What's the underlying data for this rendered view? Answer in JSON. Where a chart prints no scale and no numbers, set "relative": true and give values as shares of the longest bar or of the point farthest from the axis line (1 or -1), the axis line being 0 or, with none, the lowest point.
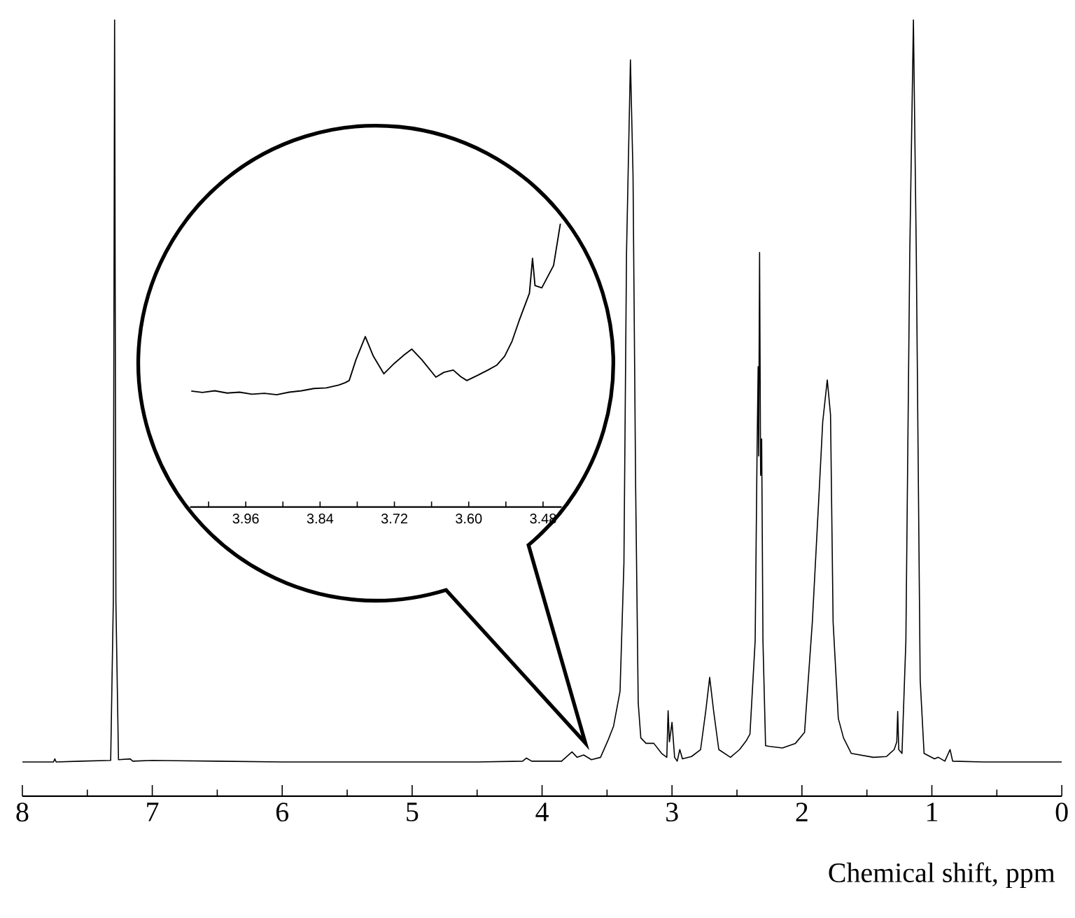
{
  "chart_data": [
    {
      "type": "line",
      "xlabel": "Chemical shift, ppm",
      "relative": true,
      "tick_labels": "x",
      "color": "#000000",
      "xlim": [
        8,
        0
      ],
      "xticks": [
        8,
        {
          "value": 7.5,
          "label": null
        },
        7,
        {
          "value": 6.5,
          "label": null
        },
        6,
        {
          "value": 5.5,
          "label": null
        },
        5,
        {
          "value": 4.5,
          "label": null
        },
        4,
        {
          "value": 3.5,
          "label": null
        },
        3,
        {
          "value": 2.5,
          "label": null
        },
        2,
        {
          "value": 1.5,
          "label": null
        },
        1,
        {
          "value": 0.5,
          "label": null
        },
        0
      ],
      "x": [
        8.0,
        7.76,
        7.75,
        7.74,
        7.55,
        7.32,
        7.3,
        7.29,
        7.28,
        7.26,
        7.17,
        7.15,
        7.0,
        6.5,
        6.0,
        5.5,
        5.0,
        4.5,
        4.15,
        4.12,
        4.08,
        3.85,
        3.77,
        3.73,
        3.68,
        3.62,
        3.55,
        3.49,
        3.45,
        3.4,
        3.37,
        3.35,
        3.32,
        3.3,
        3.28,
        3.26,
        3.24,
        3.2,
        3.14,
        3.08,
        3.04,
        3.03,
        3.02,
        3.0,
        2.98,
        2.96,
        2.94,
        2.92,
        2.85,
        2.78,
        2.74,
        2.71,
        2.68,
        2.64,
        2.55,
        2.48,
        2.43,
        2.4,
        2.36,
        2.345,
        2.337,
        2.333,
        2.326,
        2.318,
        2.31,
        2.3,
        2.28,
        2.25,
        2.15,
        2.05,
        1.98,
        1.92,
        1.87,
        1.84,
        1.805,
        1.78,
        1.76,
        1.72,
        1.68,
        1.62,
        1.45,
        1.35,
        1.29,
        1.27,
        1.263,
        1.255,
        1.23,
        1.2,
        1.17,
        1.142,
        1.12,
        1.09,
        1.06,
        0.98,
        0.95,
        0.9,
        0.86,
        0.84,
        0.6,
        0.3,
        0.0
      ],
      "values": [
        0.044,
        0.044,
        0.048,
        0.044,
        0.045,
        0.046,
        0.25,
        1.0,
        0.25,
        0.047,
        0.048,
        0.045,
        0.046,
        0.045,
        0.044,
        0.044,
        0.044,
        0.044,
        0.045,
        0.049,
        0.045,
        0.045,
        0.057,
        0.05,
        0.053,
        0.047,
        0.05,
        0.073,
        0.09,
        0.135,
        0.3,
        0.7,
        0.948,
        0.8,
        0.4,
        0.12,
        0.075,
        0.068,
        0.068,
        0.055,
        0.05,
        0.11,
        0.07,
        0.095,
        0.05,
        0.045,
        0.06,
        0.048,
        0.051,
        0.06,
        0.11,
        0.153,
        0.11,
        0.06,
        0.05,
        0.06,
        0.071,
        0.08,
        0.2,
        0.45,
        0.553,
        0.438,
        0.7,
        0.413,
        0.46,
        0.2,
        0.065,
        0.064,
        0.062,
        0.068,
        0.082,
        0.224,
        0.384,
        0.482,
        0.536,
        0.491,
        0.224,
        0.1,
        0.075,
        0.055,
        0.05,
        0.051,
        0.06,
        0.07,
        0.109,
        0.06,
        0.055,
        0.2,
        0.7,
        1.0,
        0.7,
        0.15,
        0.055,
        0.048,
        0.05,
        0.045,
        0.06,
        0.045,
        0.044,
        0.044,
        0.044
      ]
    },
    {
      "type": "line",
      "relative": true,
      "tick_labels": "x",
      "color": "#000000",
      "xlim": [
        4.05,
        3.45
      ],
      "xticks": [
        {
          "value": 4.02,
          "label": null
        },
        3.96,
        {
          "value": 3.9,
          "label": null
        },
        3.84,
        {
          "value": 3.78,
          "label": null
        },
        3.72,
        {
          "value": 3.66,
          "label": null
        },
        {
          "value": 3.6,
          "label": "3.60"
        },
        {
          "value": 3.54,
          "label": null
        },
        3.48
      ],
      "x": [
        4.048,
        4.03,
        4.01,
        3.99,
        3.97,
        3.95,
        3.93,
        3.91,
        3.89,
        3.87,
        3.85,
        3.83,
        3.81,
        3.8,
        3.793,
        3.782,
        3.767,
        3.754,
        3.737,
        3.72,
        3.705,
        3.692,
        3.676,
        3.653,
        3.64,
        3.625,
        3.613,
        3.603,
        3.585,
        3.569,
        3.555,
        3.542,
        3.53,
        3.519,
        3.502,
        3.497,
        3.493,
        3.482,
        3.463,
        3.452
      ],
      "values": [
        0.409,
        0.404,
        0.41,
        0.402,
        0.405,
        0.398,
        0.401,
        0.396,
        0.405,
        0.41,
        0.418,
        0.42,
        0.43,
        0.438,
        0.446,
        0.52,
        0.601,
        0.532,
        0.47,
        0.507,
        0.535,
        0.557,
        0.52,
        0.458,
        0.475,
        0.483,
        0.46,
        0.446,
        0.465,
        0.483,
        0.5,
        0.532,
        0.585,
        0.655,
        0.754,
        0.877,
        0.781,
        0.773,
        0.852,
        1.0
      ]
    }
  ]
}
